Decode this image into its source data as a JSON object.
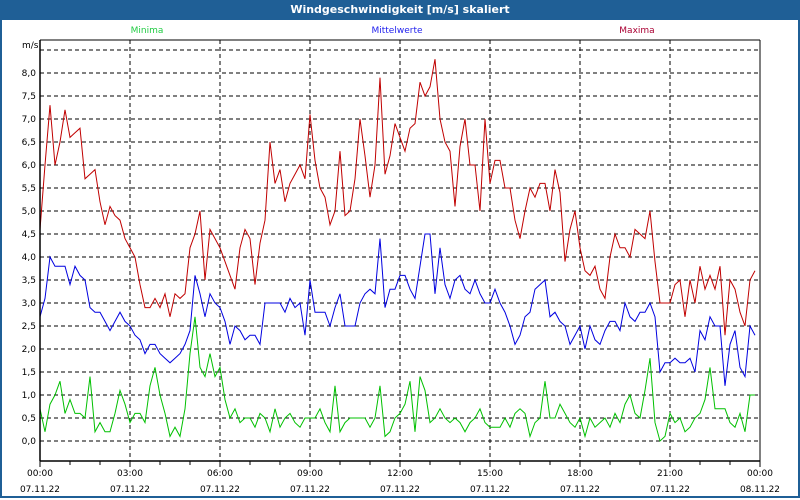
{
  "title": "Windgeschwindigkeit [m/s] skaliert",
  "chart_data": {
    "type": "line",
    "title": "Windgeschwindigkeit [m/s] skaliert",
    "ylabel": "m/s",
    "ylim": [
      -0.4,
      8.7
    ],
    "grid": true,
    "legend_placement": "top",
    "interval_minutes": 10,
    "y_ticks": [
      "0,0",
      "0,5",
      "1,0",
      "1,5",
      "2,0",
      "2,5",
      "3,0",
      "3,5",
      "4,0",
      "4,5",
      "5,0",
      "5,5",
      "6,0",
      "6,5",
      "7,0",
      "7,5",
      "8,0"
    ],
    "x_ticks": [
      {
        "time": "00:00",
        "date": "07.11.22"
      },
      {
        "time": "03:00",
        "date": "07.11.22"
      },
      {
        "time": "06:00",
        "date": "07.11.22"
      },
      {
        "time": "09:00",
        "date": "07.11.22"
      },
      {
        "time": "12:00",
        "date": "07.11.22"
      },
      {
        "time": "15:00",
        "date": "07.11.22"
      },
      {
        "time": "18:00",
        "date": "07.11.22"
      },
      {
        "time": "21:00",
        "date": "07.11.22"
      },
      {
        "time": "00:00",
        "date": "08.11.22"
      }
    ],
    "series": [
      {
        "name": "Minima",
        "color": "#00c000",
        "legend_color": "#22cc44",
        "values": [
          0.7,
          0.2,
          0.8,
          1.0,
          1.3,
          0.6,
          0.9,
          0.6,
          0.6,
          0.5,
          1.4,
          0.2,
          0.4,
          0.2,
          0.2,
          0.6,
          1.1,
          0.8,
          0.4,
          0.6,
          0.6,
          0.4,
          1.2,
          1.6,
          1.0,
          0.6,
          0.1,
          0.3,
          0.1,
          0.7,
          1.9,
          2.7,
          1.6,
          1.4,
          1.9,
          1.4,
          1.6,
          0.9,
          0.5,
          0.7,
          0.4,
          0.5,
          0.5,
          0.3,
          0.6,
          0.5,
          0.2,
          0.7,
          0.3,
          0.5,
          0.6,
          0.4,
          0.3,
          0.5,
          0.5,
          0.5,
          0.7,
          0.4,
          0.2,
          1.2,
          0.2,
          0.4,
          0.5,
          0.5,
          0.5,
          0.5,
          0.3,
          0.5,
          1.2,
          0.1,
          0.2,
          0.5,
          0.6,
          0.8,
          1.3,
          0.2,
          1.4,
          1.1,
          0.4,
          0.5,
          0.7,
          0.5,
          0.4,
          0.5,
          0.4,
          0.2,
          0.4,
          0.5,
          0.7,
          0.4,
          0.3,
          0.3,
          0.3,
          0.5,
          0.3,
          0.6,
          0.7,
          0.6,
          0.1,
          0.4,
          0.5,
          1.3,
          0.5,
          0.5,
          0.8,
          0.6,
          0.4,
          0.3,
          0.5,
          0.1,
          0.5,
          0.3,
          0.4,
          0.5,
          0.3,
          0.6,
          0.4,
          0.8,
          1.0,
          0.6,
          0.5,
          1.1,
          1.8,
          0.4,
          0.0,
          0.1,
          0.6,
          0.4,
          0.5,
          0.2,
          0.3,
          0.5,
          0.6,
          0.9,
          1.6,
          0.7,
          0.7,
          0.7,
          0.4,
          0.3,
          0.6,
          0.2,
          1.0,
          1.0
        ]
      },
      {
        "name": "Mittelwerte",
        "color": "#0000e0",
        "legend_color": "#2222ee",
        "values": [
          2.7,
          3.1,
          4.0,
          3.8,
          3.8,
          3.8,
          3.4,
          3.8,
          3.6,
          3.5,
          2.9,
          2.8,
          2.8,
          2.6,
          2.4,
          2.6,
          2.8,
          2.6,
          2.5,
          2.3,
          2.2,
          1.9,
          2.1,
          2.1,
          1.9,
          1.8,
          1.7,
          1.8,
          1.9,
          2.1,
          2.4,
          3.6,
          3.2,
          2.7,
          3.2,
          3.0,
          2.9,
          2.6,
          2.1,
          2.5,
          2.4,
          2.2,
          2.3,
          2.3,
          2.1,
          3.0,
          3.0,
          3.0,
          3.0,
          2.8,
          3.1,
          2.9,
          3.0,
          2.3,
          3.5,
          2.8,
          2.8,
          2.8,
          2.5,
          2.9,
          3.2,
          2.5,
          2.5,
          2.5,
          3.0,
          3.2,
          3.3,
          3.2,
          4.4,
          2.9,
          3.3,
          3.3,
          3.6,
          3.6,
          3.3,
          3.1,
          3.8,
          4.5,
          4.5,
          3.2,
          4.2,
          3.4,
          3.1,
          3.5,
          3.6,
          3.3,
          3.2,
          3.5,
          3.2,
          3.0,
          3.0,
          3.3,
          3.0,
          2.8,
          2.5,
          2.1,
          2.3,
          2.7,
          2.8,
          3.3,
          3.4,
          3.5,
          2.7,
          2.8,
          2.6,
          2.5,
          2.1,
          2.3,
          2.5,
          2.0,
          2.5,
          2.2,
          2.1,
          2.4,
          2.6,
          2.6,
          2.4,
          3.0,
          2.7,
          2.6,
          2.8,
          2.8,
          3.0,
          2.7,
          1.5,
          1.7,
          1.7,
          1.8,
          1.7,
          1.7,
          1.8,
          1.5,
          2.4,
          2.2,
          2.7,
          2.5,
          2.5,
          1.2,
          2.1,
          2.4,
          1.6,
          1.4,
          2.5,
          2.3
        ]
      },
      {
        "name": "Maxima",
        "color": "#c00000",
        "legend_color": "#aa0033",
        "values": [
          4.6,
          6.0,
          7.3,
          6.0,
          6.5,
          7.2,
          6.6,
          6.7,
          6.8,
          5.7,
          5.8,
          5.9,
          5.2,
          4.7,
          5.1,
          4.9,
          4.8,
          4.4,
          4.2,
          4.0,
          3.4,
          2.9,
          2.9,
          3.1,
          2.9,
          3.2,
          2.7,
          3.2,
          3.1,
          3.2,
          4.2,
          4.5,
          5.0,
          3.5,
          4.6,
          4.4,
          4.2,
          3.9,
          3.6,
          3.3,
          4.2,
          4.6,
          4.4,
          3.4,
          4.3,
          4.8,
          6.5,
          5.6,
          5.9,
          5.2,
          5.6,
          5.8,
          6.0,
          5.7,
          7.1,
          6.1,
          5.5,
          5.3,
          4.7,
          5.0,
          6.3,
          4.9,
          5.0,
          5.7,
          7.0,
          6.2,
          5.3,
          6.0,
          7.9,
          5.8,
          6.2,
          6.9,
          6.6,
          6.3,
          6.8,
          6.9,
          7.8,
          7.5,
          7.7,
          8.3,
          7.0,
          6.5,
          6.3,
          5.1,
          6.4,
          7.0,
          6.0,
          6.0,
          5.0,
          7.0,
          5.6,
          6.1,
          6.1,
          5.5,
          5.5,
          4.8,
          4.4,
          5.0,
          5.5,
          5.3,
          5.6,
          5.6,
          5.0,
          5.9,
          5.4,
          3.9,
          4.6,
          5.0,
          4.2,
          3.7,
          3.6,
          3.8,
          3.3,
          3.1,
          4.0,
          4.5,
          4.2,
          4.2,
          4.0,
          4.6,
          4.5,
          4.4,
          5.0,
          3.9,
          3.0,
          3.0,
          3.0,
          3.4,
          3.5,
          2.7,
          3.5,
          3.0,
          3.8,
          3.3,
          3.6,
          3.3,
          3.8,
          2.3,
          3.5,
          3.3,
          2.8,
          2.5,
          3.5,
          3.7
        ]
      }
    ]
  }
}
